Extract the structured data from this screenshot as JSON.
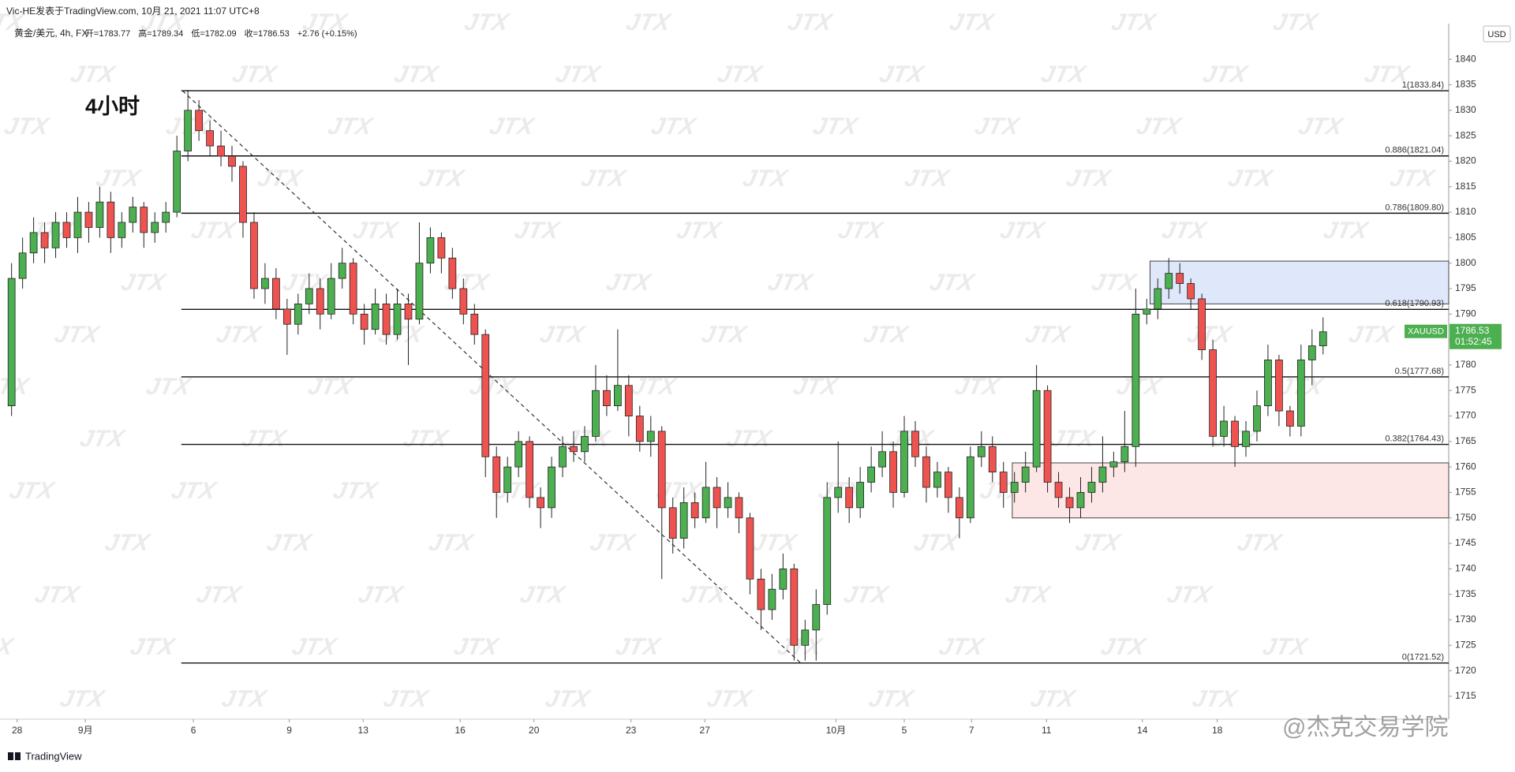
{
  "header": {
    "author_line": "Vic-HE发表于TradingView.com, 10月 21, 2021 11:07 UTC+8",
    "symbol": "黄金/美元, 4h, FX",
    "ohlc_text": [
      "开=1783.77",
      "高=1789.34",
      "低=1782.09",
      "收=1786.53",
      "+2.76 (+0.15%)"
    ]
  },
  "footer": {
    "brand": "TradingView",
    "watermark": "JTX",
    "credit": "@杰克交易学院"
  },
  "chart_data": {
    "type": "candlestick",
    "annotation": "4小时",
    "currency": "USD",
    "up_color": "#4caf50",
    "down_color": "#ef5350",
    "xlim": [
      -1.05,
      130.4
    ],
    "ylim": [
      1710.5,
      1847
    ],
    "yticks": [
      1715,
      1720,
      1725,
      1730,
      1735,
      1740,
      1745,
      1750,
      1755,
      1760,
      1765,
      1770,
      1775,
      1780,
      1785,
      1790,
      1795,
      1800,
      1805,
      1810,
      1815,
      1820,
      1825,
      1830,
      1835,
      1840
    ],
    "xticks": [
      {
        "value": 0.5,
        "label": "28"
      },
      {
        "value": 6.7,
        "label": "9月"
      },
      {
        "value": 16.5,
        "label": "6"
      },
      {
        "value": 25.2,
        "label": "9"
      },
      {
        "value": 31.9,
        "label": "13"
      },
      {
        "value": 40.7,
        "label": "16"
      },
      {
        "value": 47.4,
        "label": "20"
      },
      {
        "value": 56.2,
        "label": "23"
      },
      {
        "value": 62.9,
        "label": "27"
      },
      {
        "value": 74.8,
        "label": "10月"
      },
      {
        "value": 81.0,
        "label": "5"
      },
      {
        "value": 87.1,
        "label": "7"
      },
      {
        "value": 93.9,
        "label": "11"
      },
      {
        "value": 102.6,
        "label": "14"
      },
      {
        "value": 109.4,
        "label": "18"
      }
    ],
    "candles": [
      [
        1772,
        1800,
        1770,
        1797
      ],
      [
        1797,
        1805,
        1795,
        1802
      ],
      [
        1802,
        1809,
        1800,
        1806
      ],
      [
        1806,
        1808,
        1800,
        1803
      ],
      [
        1803,
        1810,
        1801,
        1808
      ],
      [
        1808,
        1810,
        1803,
        1805
      ],
      [
        1805,
        1813,
        1802,
        1810
      ],
      [
        1810,
        1812,
        1804,
        1807
      ],
      [
        1807,
        1815,
        1805,
        1812
      ],
      [
        1812,
        1814,
        1802,
        1805
      ],
      [
        1805,
        1810,
        1803,
        1808
      ],
      [
        1808,
        1813,
        1806,
        1811
      ],
      [
        1811,
        1812,
        1803,
        1806
      ],
      [
        1806,
        1810,
        1804,
        1808
      ],
      [
        1808,
        1812,
        1806,
        1810
      ],
      [
        1810,
        1825,
        1809,
        1822
      ],
      [
        1822,
        1834,
        1820,
        1830
      ],
      [
        1830,
        1832,
        1824,
        1826
      ],
      [
        1826,
        1828,
        1821,
        1823
      ],
      [
        1823,
        1826,
        1819,
        1821
      ],
      [
        1821,
        1823,
        1816,
        1819
      ],
      [
        1819,
        1820,
        1805,
        1808
      ],
      [
        1808,
        1810,
        1793,
        1795
      ],
      [
        1795,
        1800,
        1792,
        1797
      ],
      [
        1797,
        1799,
        1789,
        1791
      ],
      [
        1791,
        1793,
        1782,
        1788
      ],
      [
        1788,
        1794,
        1786,
        1792
      ],
      [
        1792,
        1798,
        1790,
        1795
      ],
      [
        1795,
        1797,
        1787,
        1790
      ],
      [
        1790,
        1800,
        1789,
        1797
      ],
      [
        1797,
        1803,
        1795,
        1800
      ],
      [
        1800,
        1801,
        1788,
        1790
      ],
      [
        1790,
        1792,
        1784,
        1787
      ],
      [
        1787,
        1795,
        1786,
        1792
      ],
      [
        1792,
        1794,
        1784,
        1786
      ],
      [
        1786,
        1795,
        1785,
        1792
      ],
      [
        1792,
        1794,
        1780,
        1789
      ],
      [
        1789,
        1808,
        1788,
        1800
      ],
      [
        1800,
        1807,
        1798,
        1805
      ],
      [
        1805,
        1806,
        1798,
        1801
      ],
      [
        1801,
        1803,
        1793,
        1795
      ],
      [
        1795,
        1797,
        1788,
        1790
      ],
      [
        1790,
        1792,
        1784,
        1786
      ],
      [
        1786,
        1787,
        1758,
        1762
      ],
      [
        1762,
        1764,
        1750,
        1755
      ],
      [
        1755,
        1762,
        1753,
        1760
      ],
      [
        1760,
        1767,
        1758,
        1765
      ],
      [
        1765,
        1766,
        1752,
        1754
      ],
      [
        1754,
        1756,
        1748,
        1752
      ],
      [
        1752,
        1762,
        1750,
        1760
      ],
      [
        1760,
        1766,
        1758,
        1764
      ],
      [
        1764,
        1767,
        1761,
        1763
      ],
      [
        1763,
        1768,
        1761,
        1766
      ],
      [
        1766,
        1780,
        1765,
        1775
      ],
      [
        1775,
        1778,
        1770,
        1772
      ],
      [
        1772,
        1787,
        1771,
        1776
      ],
      [
        1776,
        1778,
        1766,
        1770
      ],
      [
        1770,
        1772,
        1763,
        1765
      ],
      [
        1765,
        1770,
        1762,
        1767
      ],
      [
        1767,
        1768,
        1738,
        1752
      ],
      [
        1752,
        1754,
        1743,
        1746
      ],
      [
        1746,
        1756,
        1744,
        1753
      ],
      [
        1753,
        1755,
        1748,
        1750
      ],
      [
        1750,
        1761,
        1749,
        1756
      ],
      [
        1756,
        1758,
        1748,
        1752
      ],
      [
        1752,
        1757,
        1750,
        1754
      ],
      [
        1754,
        1755,
        1747,
        1750
      ],
      [
        1750,
        1751,
        1735,
        1738
      ],
      [
        1738,
        1740,
        1728,
        1732
      ],
      [
        1732,
        1739,
        1730,
        1736
      ],
      [
        1736,
        1743,
        1734,
        1740
      ],
      [
        1740,
        1741,
        1722,
        1725
      ],
      [
        1725,
        1730,
        1722,
        1728
      ],
      [
        1728,
        1736,
        1722,
        1733
      ],
      [
        1733,
        1757,
        1731,
        1754
      ],
      [
        1754,
        1765,
        1751,
        1756
      ],
      [
        1756,
        1758,
        1749,
        1752
      ],
      [
        1752,
        1760,
        1750,
        1757
      ],
      [
        1757,
        1764,
        1755,
        1760
      ],
      [
        1760,
        1767,
        1758,
        1763
      ],
      [
        1763,
        1765,
        1752,
        1755
      ],
      [
        1755,
        1770,
        1754,
        1767
      ],
      [
        1767,
        1769,
        1760,
        1762
      ],
      [
        1762,
        1764,
        1753,
        1756
      ],
      [
        1756,
        1761,
        1754,
        1759
      ],
      [
        1759,
        1760,
        1751,
        1754
      ],
      [
        1754,
        1756,
        1746,
        1750
      ],
      [
        1750,
        1764,
        1749,
        1762
      ],
      [
        1762,
        1767,
        1760,
        1764
      ],
      [
        1764,
        1766,
        1757,
        1759
      ],
      [
        1759,
        1761,
        1752,
        1755
      ],
      [
        1755,
        1759,
        1753,
        1757
      ],
      [
        1757,
        1763,
        1755,
        1760
      ],
      [
        1760,
        1780,
        1759,
        1775
      ],
      [
        1775,
        1776,
        1755,
        1757
      ],
      [
        1757,
        1759,
        1752,
        1754
      ],
      [
        1754,
        1756,
        1749,
        1752
      ],
      [
        1752,
        1758,
        1750,
        1755
      ],
      [
        1755,
        1760,
        1753,
        1757
      ],
      [
        1757,
        1766,
        1755,
        1760
      ],
      [
        1760,
        1763,
        1758,
        1761
      ],
      [
        1761,
        1771,
        1759,
        1764
      ],
      [
        1764,
        1795,
        1760,
        1790
      ],
      [
        1790,
        1793,
        1788,
        1791
      ],
      [
        1791,
        1797,
        1789,
        1795
      ],
      [
        1795,
        1801,
        1793,
        1798
      ],
      [
        1798,
        1800,
        1794,
        1796
      ],
      [
        1796,
        1797,
        1791,
        1793
      ],
      [
        1793,
        1794,
        1781,
        1783
      ],
      [
        1783,
        1785,
        1764,
        1766
      ],
      [
        1766,
        1772,
        1764,
        1769
      ],
      [
        1769,
        1770,
        1760,
        1764
      ],
      [
        1764,
        1769,
        1762,
        1767
      ],
      [
        1767,
        1775,
        1765,
        1772
      ],
      [
        1772,
        1784,
        1770,
        1781
      ],
      [
        1781,
        1782,
        1768,
        1771
      ],
      [
        1771,
        1772,
        1766,
        1768
      ],
      [
        1768,
        1784,
        1766,
        1781
      ],
      [
        1781,
        1787,
        1776,
        1783.77
      ],
      [
        1783.77,
        1789.34,
        1782.09,
        1786.53
      ]
    ],
    "fib": {
      "x_start": 15.4,
      "levels": [
        {
          "value": 1833.84,
          "label": "1(1833.84)"
        },
        {
          "value": 1821.04,
          "label": "0.886(1821.04)"
        },
        {
          "value": 1809.8,
          "label": "0.786(1809.80)"
        },
        {
          "value": 1790.93,
          "label": "0.618(1790.93)"
        },
        {
          "value": 1777.68,
          "label": "0.5(1777.68)"
        },
        {
          "value": 1764.43,
          "label": "0.382(1764.43)"
        },
        {
          "value": 1721.52,
          "label": "0(1721.52)"
        }
      ]
    },
    "trend_line": {
      "x": [
        15.5,
        71.6
      ],
      "y": [
        1833.84,
        1721.52
      ]
    },
    "zones": [
      {
        "x_start": 103.3,
        "top": 1800.4,
        "bottom": 1792,
        "color": "#dfe8fb"
      },
      {
        "x_start": 90.8,
        "top": 1760.8,
        "bottom": 1750,
        "color": "#fde6e6"
      }
    ],
    "price_label": {
      "symbol": "XAUUSD",
      "value": 1786.53,
      "countdown": "01:52:45",
      "color": "#4caf50"
    }
  }
}
